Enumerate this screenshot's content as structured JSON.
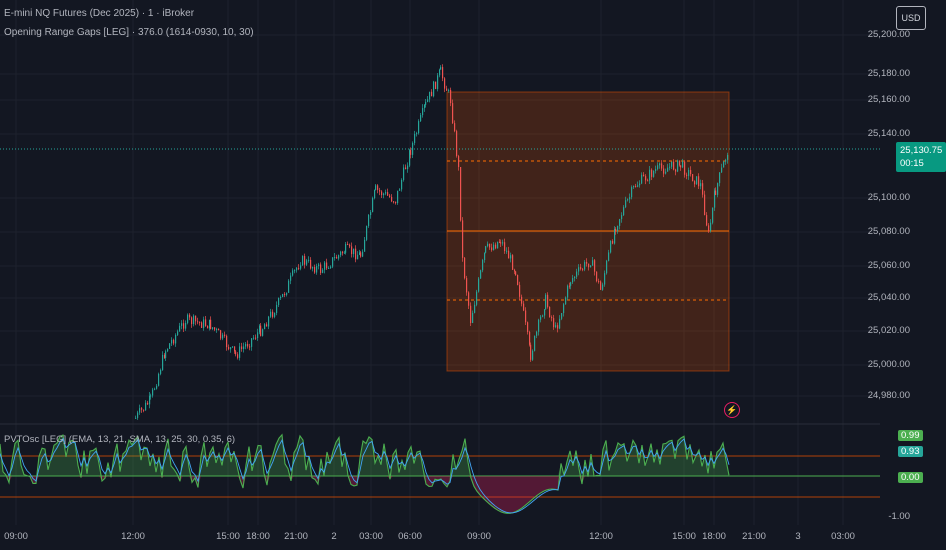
{
  "header": {
    "title": "E-mini NQ Futures (Dec 2025) · 1 · iBroker",
    "indicator": "Opening Range Gaps [LEG] · 376.0 (1614-0930, 10, 30)"
  },
  "oscillator": {
    "label": "PVTOsc [LEG] (EMA, 13, 21, SMA, 13, 25, 30, 0.35, 6)",
    "badge_high": "0.99",
    "badge_mid": "0.93",
    "badge_zero": "0.00",
    "label_min": "-1.00"
  },
  "currency_button": "USD",
  "price": {
    "current": "25,130.75",
    "countdown": "00:15",
    "up_color": "#26a69a",
    "down_color": "#ef5350",
    "range_color": "#e65100"
  },
  "price_axis": [
    "25,200.00",
    "25,180.00",
    "25,160.00",
    "25,140.00",
    "25,100.00",
    "25,080.00",
    "25,060.00",
    "25,040.00",
    "25,020.00",
    "25,000.00",
    "24,980.00"
  ],
  "time_axis": [
    "09:00",
    "12:00",
    "15:00",
    "18:00",
    "21:00",
    "2",
    "03:00",
    "06:00",
    "09:00",
    "12:00",
    "15:00",
    "18:00",
    "21:00",
    "3",
    "03:00"
  ],
  "icons": {
    "alert": "bolt-icon"
  }
}
